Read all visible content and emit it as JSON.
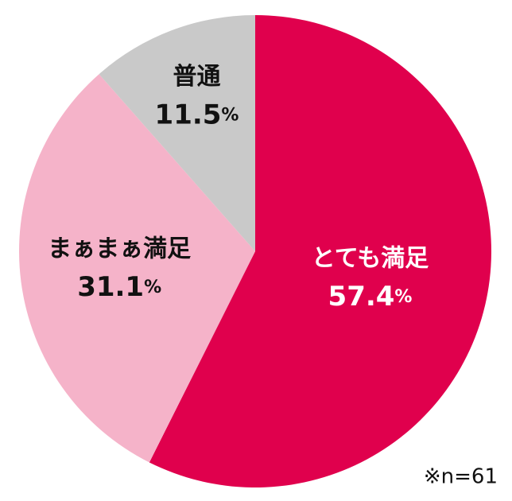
{
  "chart_data": {
    "type": "pie",
    "categories": [
      "とても満足",
      "まぁまぁ満足",
      "普通"
    ],
    "values": [
      57.4,
      31.1,
      11.5
    ],
    "value_labels": [
      "57.4%",
      "31.1%",
      "11.5%"
    ],
    "colors": [
      "#e0004d",
      "#f5b3c9",
      "#c9c9c9"
    ],
    "annotation": "※n=61"
  }
}
